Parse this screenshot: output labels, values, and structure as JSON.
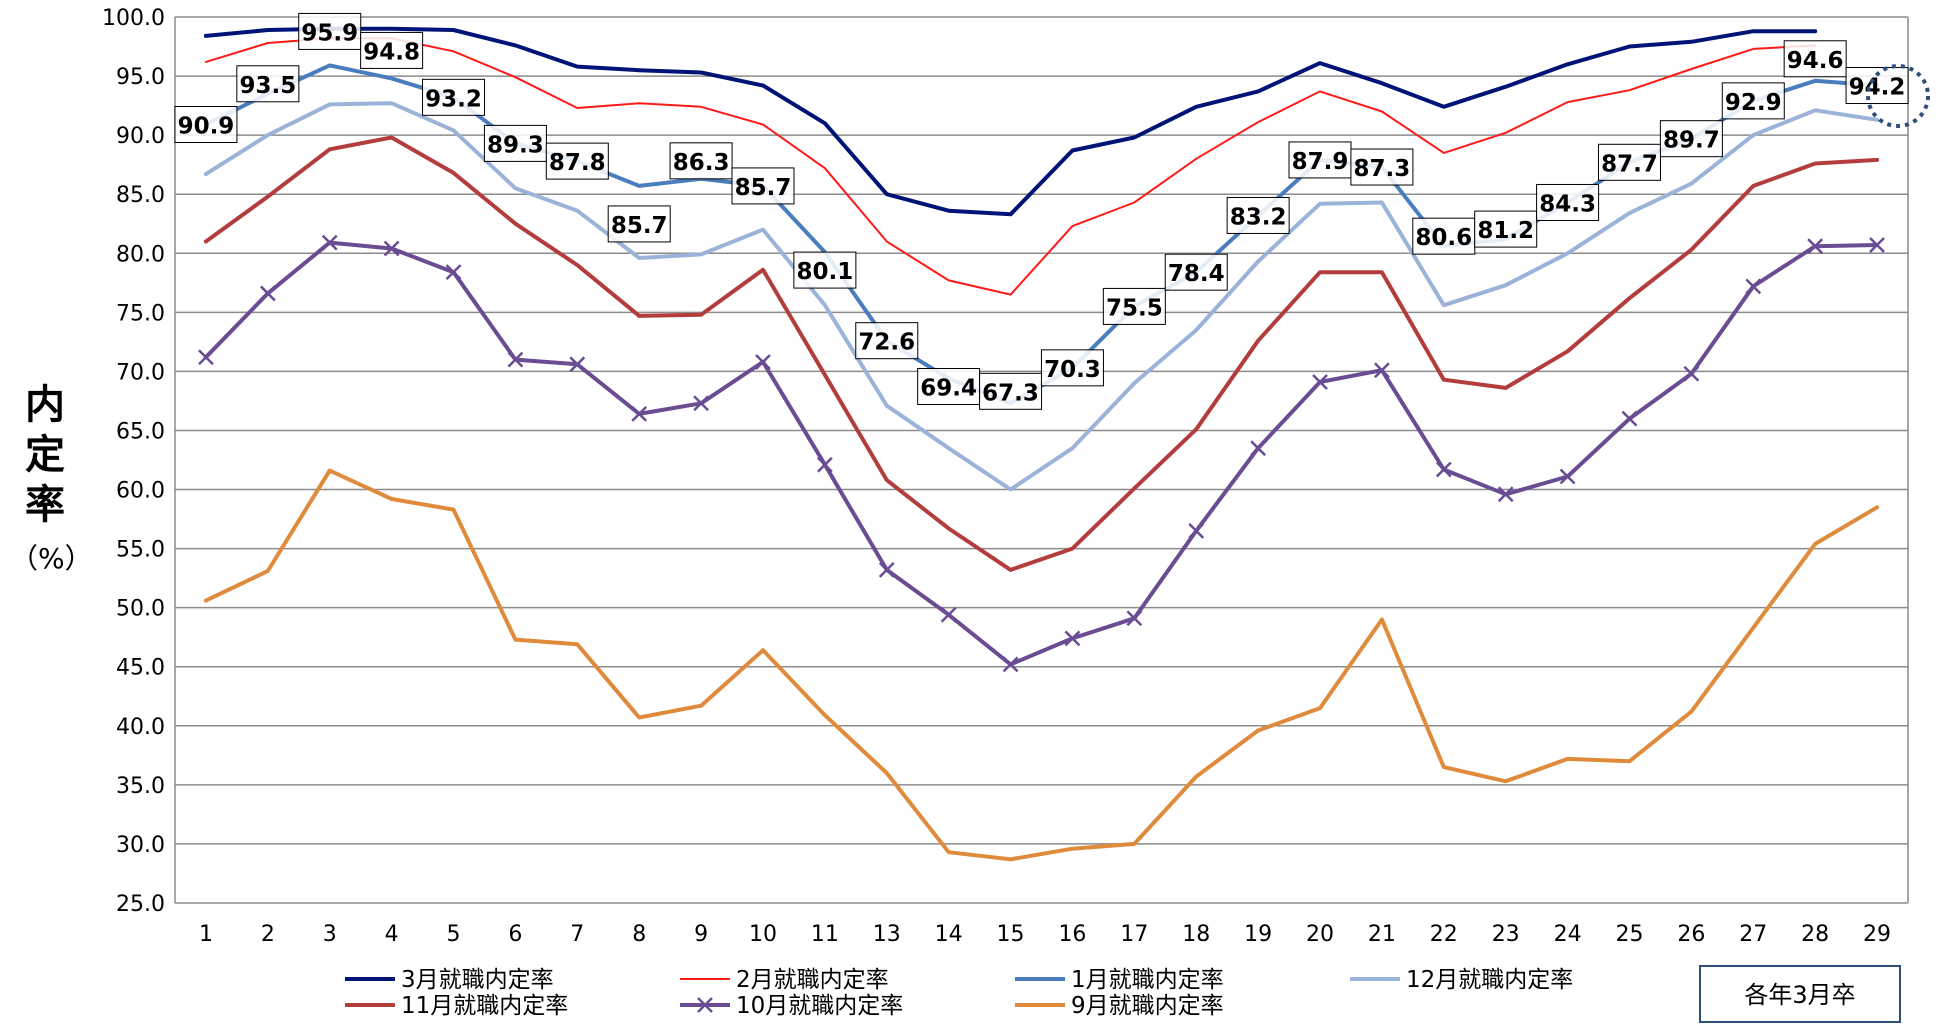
{
  "chart_data": {
    "type": "line",
    "title": "",
    "xlabel": "",
    "ylabel": "内定率",
    "yunit": "（%）",
    "categories": [
      "1",
      "2",
      "3",
      "4",
      "5",
      "6",
      "7",
      "8",
      "9",
      "10",
      "11",
      "13",
      "14",
      "15",
      "16",
      "17",
      "18",
      "19",
      "20",
      "21",
      "22",
      "23",
      "24",
      "25",
      "26",
      "27",
      "28",
      "29"
    ],
    "ylim": [
      25.0,
      100.0
    ],
    "yticks": [
      "25.0",
      "30.0",
      "35.0",
      "40.0",
      "45.0",
      "50.0",
      "55.0",
      "60.0",
      "65.0",
      "70.0",
      "75.0",
      "80.0",
      "85.0",
      "90.0",
      "95.0",
      "100.0"
    ],
    "grid": true,
    "legend_position": "bottom",
    "note": "各年3月卒",
    "series": [
      {
        "name": "3月就職内定率",
        "color": "#001478",
        "marker": "none",
        "values": [
          98.4,
          98.9,
          99.0,
          99.0,
          98.9,
          97.6,
          95.8,
          95.5,
          95.3,
          94.2,
          91.0,
          85.0,
          83.6,
          83.3,
          88.7,
          89.8,
          92.4,
          93.7,
          96.1,
          94.4,
          92.4,
          94.1,
          96.0,
          97.5,
          97.9,
          98.8,
          98.8,
          null
        ]
      },
      {
        "name": "2月就職内定率",
        "color": "#ff1a1a",
        "marker": "none",
        "values": [
          96.2,
          97.8,
          98.2,
          98.2,
          97.1,
          94.9,
          92.3,
          92.7,
          92.4,
          90.9,
          87.2,
          81.0,
          77.7,
          76.5,
          82.3,
          84.3,
          88.0,
          91.1,
          93.7,
          92.0,
          88.5,
          90.2,
          92.8,
          93.8,
          95.6,
          97.3,
          97.6,
          null
        ]
      },
      {
        "name": "1月就職内定率",
        "color": "#4a7dbd",
        "marker": "none",
        "labels": true,
        "values": [
          90.9,
          93.5,
          95.9,
          94.8,
          93.2,
          89.3,
          87.8,
          85.7,
          86.3,
          85.7,
          80.1,
          72.6,
          69.4,
          67.3,
          70.3,
          75.5,
          78.4,
          83.2,
          87.9,
          87.3,
          80.6,
          81.2,
          84.3,
          87.7,
          89.7,
          92.9,
          94.6,
          94.2
        ]
      },
      {
        "name": "12月就職内定率",
        "color": "#9bb3d9",
        "marker": "none",
        "values": [
          86.7,
          90.0,
          92.6,
          92.7,
          90.4,
          85.5,
          83.6,
          79.6,
          79.9,
          82.0,
          75.6,
          67.1,
          63.5,
          60.0,
          63.5,
          69.0,
          73.5,
          79.3,
          84.2,
          84.3,
          75.6,
          77.3,
          80.0,
          83.4,
          85.9,
          90.0,
          92.1,
          91.3
        ]
      },
      {
        "name": "11月就職内定率",
        "color": "#b33c3c",
        "marker": "none",
        "values": [
          81.0,
          84.8,
          88.8,
          89.8,
          86.8,
          82.5,
          79.0,
          74.7,
          74.8,
          78.6,
          69.7,
          60.8,
          56.7,
          53.2,
          55.0,
          60.1,
          65.1,
          72.6,
          78.4,
          78.4,
          69.3,
          68.6,
          71.7,
          76.2,
          80.3,
          85.7,
          87.6,
          87.9
        ]
      },
      {
        "name": "10月就職内定率",
        "color": "#6a4c93",
        "marker": "x",
        "values": [
          71.2,
          76.6,
          80.9,
          80.4,
          78.4,
          71.0,
          70.6,
          66.4,
          67.3,
          70.8,
          62.1,
          53.2,
          49.4,
          45.2,
          47.4,
          49.1,
          56.5,
          63.5,
          69.1,
          70.1,
          61.7,
          59.6,
          61.1,
          66.0,
          69.8,
          77.2,
          80.6,
          80.7
        ]
      },
      {
        "name": "9月就職内定率",
        "color": "#e08a3c",
        "marker": "none",
        "values": [
          50.6,
          53.1,
          61.6,
          59.2,
          58.3,
          47.3,
          46.9,
          40.7,
          41.7,
          46.4,
          40.9,
          36.0,
          29.3,
          28.7,
          29.6,
          30.0,
          35.7,
          39.6,
          41.5,
          49.0,
          36.5,
          35.3,
          37.2,
          37.0,
          41.2,
          48.3,
          55.4,
          58.5
        ]
      }
    ]
  }
}
